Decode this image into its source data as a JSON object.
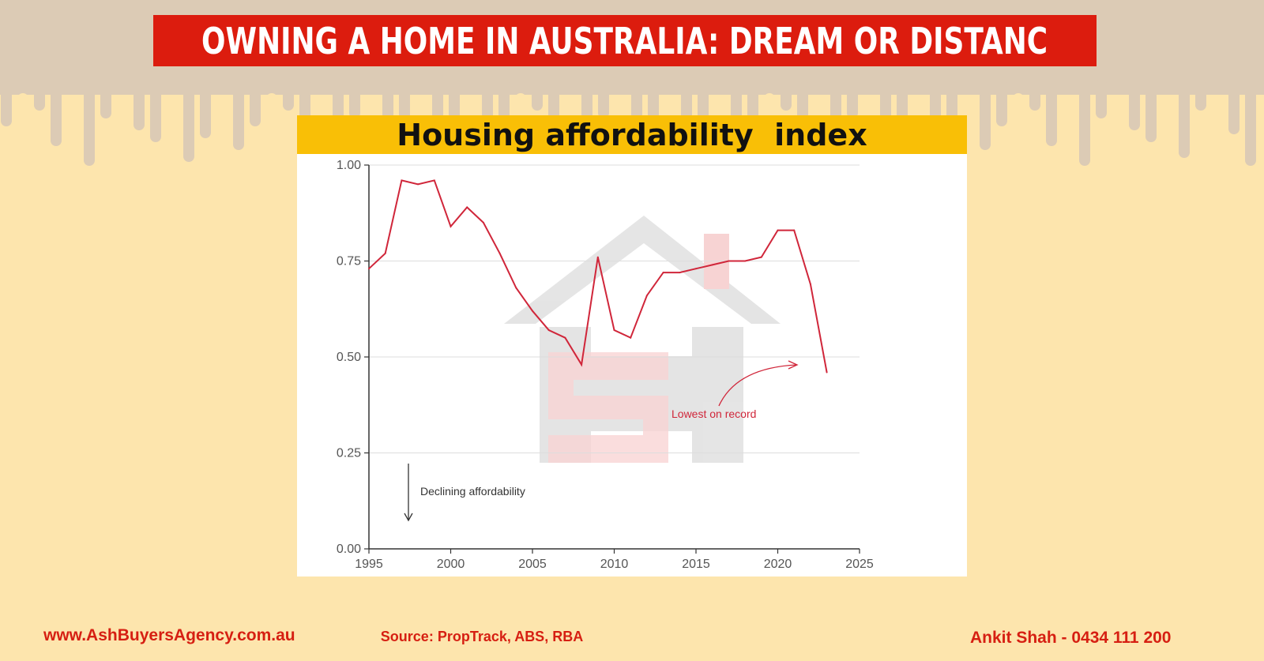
{
  "title": "OWNING A HOME IN AUSTRALIA: DREAM OR DISTANC",
  "chart_header": "Housing affordability  index",
  "chart_data": {
    "type": "line",
    "title": "Housing affordability  index",
    "xlabel": "",
    "ylabel": "",
    "xlim": [
      1995,
      2025
    ],
    "ylim": [
      0,
      1
    ],
    "x_ticks": [
      "1995",
      "2000",
      "2005",
      "2010",
      "2015",
      "2020",
      "2025"
    ],
    "y_ticks": [
      "1.00",
      "0.75",
      "0.50",
      "0.25",
      "0.00"
    ],
    "grid": "horizontal",
    "series": [
      {
        "color": "#d0263a",
        "x": [
          1995,
          1996,
          1997,
          1998,
          1999,
          2000,
          2001,
          2002,
          2003,
          2004,
          2005,
          2006,
          2007,
          2008,
          2009,
          2010,
          2011,
          2012,
          2013,
          2014,
          2015,
          2016,
          2017,
          2018,
          2019,
          2020,
          2021,
          2022,
          2023
        ],
        "y": [
          0.73,
          0.77,
          0.96,
          0.95,
          0.96,
          0.84,
          0.89,
          0.85,
          0.77,
          0.68,
          0.62,
          0.57,
          0.55,
          0.48,
          0.76,
          0.57,
          0.55,
          0.66,
          0.72,
          0.72,
          0.73,
          0.74,
          0.75,
          0.75,
          0.76,
          0.83,
          0.83,
          0.69,
          0.46
        ]
      }
    ],
    "annotations": [
      {
        "text": "Lowest on record",
        "color": "#d0263a"
      },
      {
        "text": "Declining affordability",
        "color": "#333333"
      }
    ]
  },
  "footer": {
    "website": "www.AshBuyersAgency.com.au",
    "source": "Source: PropTrack, ABS, RBA",
    "contact": "Ankit Shah - 0434 111 200"
  },
  "colors": {
    "background": "#fde5ad",
    "drip": "#dccbb5",
    "title_bg": "#dc1c0e",
    "header_bg": "#f9bf06",
    "line": "#d0263a",
    "footer_text": "#d61f12"
  }
}
